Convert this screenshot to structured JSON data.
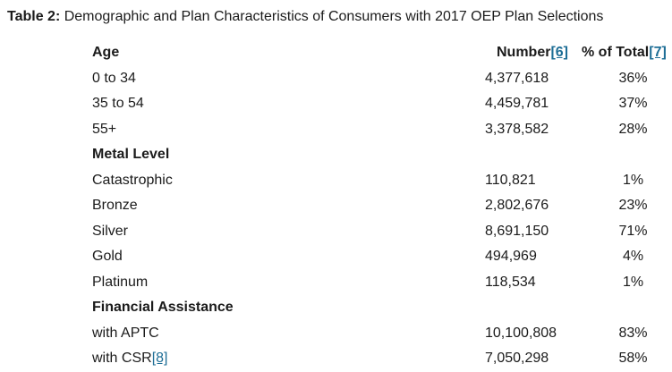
{
  "colors": {
    "link": "#1e6e96",
    "text": "#1b1b1b",
    "background": "#ffffff"
  },
  "caption": {
    "prefix": "Table 2:",
    "text": " Demographic and Plan Characteristics of Consumers with 2017 OEP Plan Selections"
  },
  "table": {
    "columns": [
      {
        "key": "label",
        "header": "Age"
      },
      {
        "key": "number",
        "header": "Number",
        "header_ref": "[6]"
      },
      {
        "key": "percent",
        "header": "% of Total",
        "header_ref": "[7]"
      }
    ],
    "rows": [
      {
        "label": "0 to 34",
        "number": "4,377,618",
        "percent": "36%",
        "section": false
      },
      {
        "label": "35 to 54",
        "number": "4,459,781",
        "percent": "37%",
        "section": false
      },
      {
        "label": "55+",
        "number": "3,378,582",
        "percent": "28%",
        "section": false
      },
      {
        "label": "Metal Level",
        "number": "",
        "percent": "",
        "section": true
      },
      {
        "label": "Catastrophic",
        "number": "110,821",
        "percent": "1%",
        "section": false
      },
      {
        "label": "Bronze",
        "number": "2,802,676",
        "percent": "23%",
        "section": false
      },
      {
        "label": "Silver",
        "number": "8,691,150",
        "percent": "71%",
        "section": false
      },
      {
        "label": "Gold",
        "number": "494,969",
        "percent": "4%",
        "section": false
      },
      {
        "label": "Platinum",
        "number": "118,534",
        "percent": "1%",
        "section": false
      },
      {
        "label": "Financial Assistance",
        "number": "",
        "percent": "",
        "section": true
      },
      {
        "label": "with APTC",
        "number": "10,100,808",
        "percent": "83%",
        "section": false
      },
      {
        "label": "with CSR",
        "label_ref": "[8]",
        "number": "7,050,298",
        "percent": "58%",
        "section": false
      }
    ]
  }
}
